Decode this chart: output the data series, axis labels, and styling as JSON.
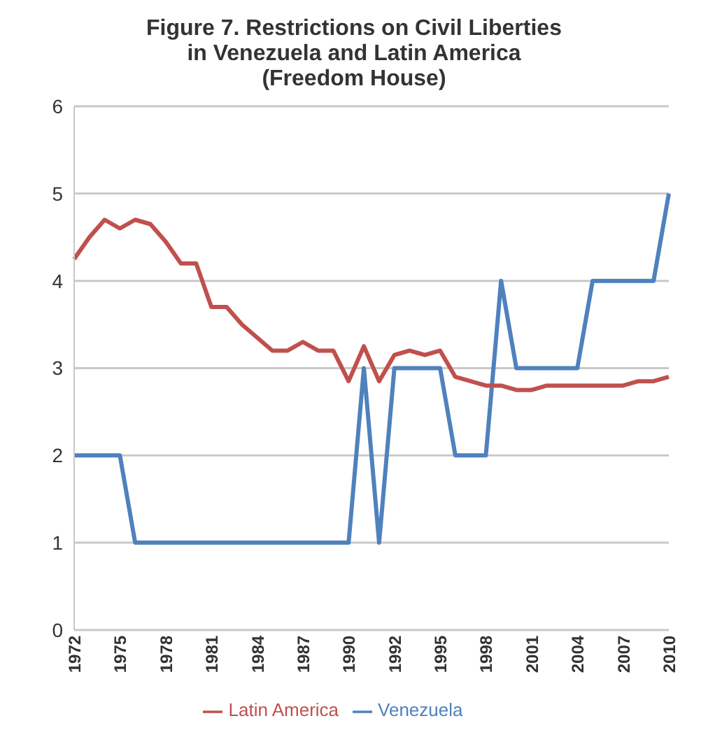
{
  "chart_data": {
    "type": "line",
    "title": "Figure 7. Restrictions on Civil Liberties in Venezuela and Latin America (Freedom House)",
    "categories": [
      "1972",
      null,
      null,
      "1975",
      null,
      null,
      "1978",
      null,
      null,
      "1981",
      null,
      null,
      "1984",
      null,
      null,
      "1987",
      null,
      null,
      "1990",
      null,
      null,
      "1992",
      null,
      null,
      "1995",
      null,
      null,
      "1998",
      null,
      null,
      "2001",
      null,
      null,
      "2004",
      null,
      null,
      "2007",
      null,
      null,
      "2010"
    ],
    "series": [
      {
        "name": "Venezuela",
        "color": "#4f81bd",
        "values": [
          2,
          2,
          2,
          2,
          1,
          1,
          1,
          1,
          1,
          1,
          1,
          1,
          1,
          1,
          1,
          1,
          1,
          1,
          1,
          3,
          1,
          3,
          3,
          3,
          3,
          2,
          2,
          2,
          4,
          3,
          3,
          3,
          3,
          3,
          4,
          4,
          4,
          4,
          4,
          5
        ]
      },
      {
        "name": "Latin America",
        "color": "#c0504d",
        "values": [
          4.25,
          4.5,
          4.7,
          4.6,
          4.7,
          4.65,
          4.45,
          4.2,
          4.2,
          3.7,
          3.7,
          3.5,
          3.35,
          3.2,
          3.2,
          3.3,
          3.2,
          3.2,
          2.85,
          3.25,
          2.85,
          3.15,
          3.2,
          3.15,
          3.2,
          2.9,
          2.85,
          2.8,
          2.8,
          2.75,
          2.75,
          2.8,
          2.8,
          2.8,
          2.8,
          2.8,
          2.8,
          2.85,
          2.85,
          2.9
        ]
      }
    ],
    "ylim": [
      0,
      6
    ],
    "yticks": [
      0,
      1,
      2,
      3,
      4,
      5,
      6
    ],
    "grid": "y",
    "legend": "bottom",
    "marker": "none",
    "line_style": "solid"
  }
}
